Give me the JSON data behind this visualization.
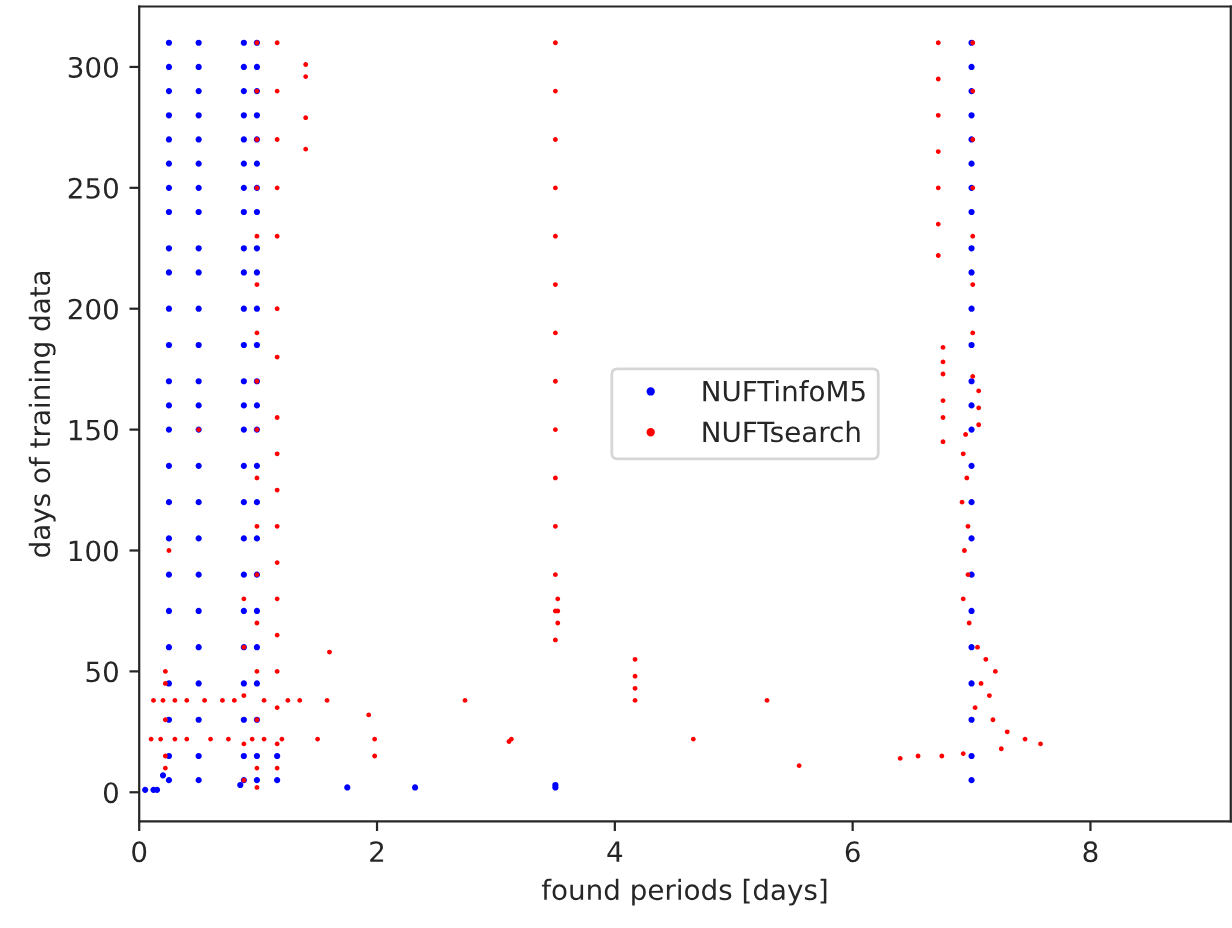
{
  "chart_data": {
    "type": "scatter",
    "xlabel": "found periods [days]",
    "ylabel": "days of training data",
    "xlim": [
      0,
      9.18
    ],
    "ylim": [
      -12,
      325
    ],
    "xticks": [
      0,
      2,
      4,
      6,
      8
    ],
    "yticks": [
      0,
      50,
      100,
      150,
      200,
      250,
      300
    ],
    "legend": "center",
    "marker": "circle",
    "grid": false,
    "series": [
      {
        "name": "NUFTinfoM5",
        "color": "#0000ff",
        "x": [
          0.25,
          0.25,
          0.25,
          0.25,
          0.25,
          0.25,
          0.25,
          0.25,
          0.25,
          0.25,
          0.25,
          0.25,
          0.25,
          0.25,
          0.25,
          0.25,
          0.25,
          0.25,
          0.25,
          0.25,
          0.25,
          0.25,
          0.25,
          0.25,
          0.25,
          0.5,
          0.5,
          0.5,
          0.5,
          0.5,
          0.5,
          0.5,
          0.5,
          0.5,
          0.5,
          0.5,
          0.5,
          0.5,
          0.5,
          0.5,
          0.5,
          0.5,
          0.5,
          0.5,
          0.5,
          0.5,
          0.5,
          0.5,
          0.5,
          0.5,
          0.88,
          0.88,
          0.88,
          0.88,
          0.88,
          0.88,
          0.88,
          0.88,
          0.88,
          0.88,
          0.88,
          0.88,
          0.88,
          0.88,
          0.88,
          0.88,
          0.88,
          0.88,
          0.88,
          0.88,
          0.88,
          0.88,
          0.88,
          0.88,
          0.88,
          0.99,
          0.99,
          0.99,
          0.99,
          0.99,
          0.99,
          0.99,
          0.99,
          0.99,
          0.99,
          0.99,
          0.99,
          0.99,
          0.99,
          0.99,
          0.99,
          0.99,
          0.99,
          0.99,
          0.99,
          0.99,
          0.99,
          0.99,
          0.99,
          0.99,
          7.0,
          7.0,
          7.0,
          7.0,
          7.0,
          7.0,
          7.0,
          7.0,
          7.0,
          7.0,
          7.0,
          7.0,
          7.0,
          7.0,
          7.0,
          7.0,
          7.0,
          7.0,
          7.0,
          7.0,
          7.0,
          7.0,
          7.0,
          7.0,
          7.0,
          0.05,
          0.12,
          0.15,
          0.2,
          0.85,
          1.16,
          1.16,
          1.75,
          2.32,
          3.5,
          3.5
        ],
        "values": [
          310,
          300,
          290,
          280,
          270,
          260,
          250,
          240,
          225,
          215,
          200,
          185,
          170,
          160,
          150,
          135,
          120,
          105,
          90,
          75,
          60,
          45,
          30,
          15,
          5,
          310,
          300,
          290,
          280,
          270,
          260,
          250,
          240,
          225,
          215,
          200,
          185,
          170,
          160,
          150,
          135,
          120,
          105,
          90,
          75,
          60,
          45,
          30,
          15,
          5,
          310,
          300,
          290,
          280,
          270,
          260,
          250,
          240,
          225,
          215,
          200,
          185,
          170,
          160,
          150,
          135,
          120,
          105,
          90,
          75,
          60,
          45,
          30,
          15,
          5,
          310,
          300,
          290,
          280,
          270,
          260,
          250,
          240,
          225,
          215,
          200,
          185,
          170,
          160,
          150,
          135,
          120,
          105,
          90,
          75,
          60,
          45,
          30,
          15,
          5,
          310,
          300,
          290,
          280,
          270,
          260,
          250,
          240,
          225,
          215,
          200,
          185,
          170,
          160,
          150,
          135,
          120,
          105,
          90,
          75,
          60,
          45,
          30,
          15,
          5,
          1,
          1,
          1,
          7,
          3,
          15,
          5,
          2,
          2,
          3,
          2
        ]
      },
      {
        "name": "NUFTsearch",
        "color": "#ff0000",
        "x": [
          0.88,
          0.88,
          0.88,
          0.88,
          0.88,
          0.99,
          0.99,
          0.99,
          0.99,
          0.99,
          0.99,
          0.99,
          0.99,
          0.99,
          0.99,
          0.99,
          0.99,
          0.99,
          0.99,
          0.99,
          0.99,
          0.99,
          1.16,
          1.16,
          1.16,
          1.16,
          1.16,
          1.16,
          1.16,
          1.16,
          1.16,
          1.16,
          1.16,
          1.16,
          1.16,
          1.16,
          1.16,
          1.16,
          1.16,
          1.16,
          3.5,
          3.5,
          3.5,
          3.5,
          3.5,
          3.5,
          3.5,
          3.5,
          3.5,
          3.5,
          3.5,
          3.5,
          3.5,
          3.5,
          3.52,
          3.52,
          3.52,
          6.72,
          6.72,
          6.72,
          6.72,
          6.72,
          6.72,
          6.72,
          6.76,
          6.76,
          6.76,
          6.76,
          6.76,
          6.76,
          7.01,
          7.01,
          7.01,
          7.01,
          7.01,
          7.01,
          7.01,
          7.01,
          7.06,
          7.06,
          7.06,
          6.95,
          6.93,
          6.96,
          6.92,
          6.97,
          6.94,
          6.97,
          6.93,
          6.98,
          7.05,
          7.12,
          7.2,
          7.08,
          7.15,
          7.03,
          7.18,
          7.3,
          7.45,
          7.58,
          7.25,
          6.4,
          6.55,
          6.75,
          6.93,
          0.12,
          0.2,
          0.3,
          0.4,
          0.55,
          0.7,
          0.8,
          1.05,
          1.25,
          1.35,
          1.58,
          0.1,
          0.18,
          0.3,
          0.4,
          0.6,
          0.75,
          0.95,
          1.05,
          1.2,
          1.5,
          0.22,
          0.22,
          0.22,
          0.22,
          0.22,
          1.6,
          1.93,
          1.98,
          1.98,
          2.74,
          3.11,
          3.13,
          4.17,
          4.17,
          4.17,
          4.17,
          4.66,
          5.28,
          5.55,
          1.4,
          1.4,
          1.4,
          1.4,
          0.25,
          0.5
        ],
        "values": [
          80,
          60,
          40,
          20,
          5,
          310,
          290,
          270,
          250,
          230,
          210,
          190,
          170,
          150,
          130,
          110,
          90,
          70,
          50,
          30,
          10,
          2,
          310,
          290,
          270,
          250,
          230,
          200,
          180,
          155,
          140,
          125,
          110,
          95,
          80,
          65,
          50,
          35,
          20,
          10,
          310,
          290,
          270,
          250,
          230,
          210,
          190,
          170,
          150,
          130,
          110,
          90,
          75,
          63,
          80,
          75,
          70,
          310,
          295,
          280,
          265,
          250,
          235,
          222,
          184,
          178,
          173,
          162,
          155,
          145,
          310,
          290,
          270,
          250,
          230,
          210,
          190,
          172,
          166,
          159,
          152,
          148,
          140,
          130,
          120,
          110,
          100,
          90,
          80,
          70,
          60,
          55,
          50,
          45,
          40,
          35,
          30,
          25,
          22,
          20,
          18,
          14,
          15,
          15,
          16,
          38,
          38,
          38,
          38,
          38,
          38,
          38,
          38,
          38,
          38,
          38,
          22,
          22,
          22,
          22,
          22,
          22,
          22,
          22,
          22,
          22,
          50,
          45,
          30,
          15,
          10,
          58,
          32,
          22,
          15,
          38,
          21,
          22,
          55,
          48,
          43,
          38,
          22,
          38,
          11,
          301,
          296,
          279,
          266,
          100,
          150
        ]
      }
    ]
  }
}
